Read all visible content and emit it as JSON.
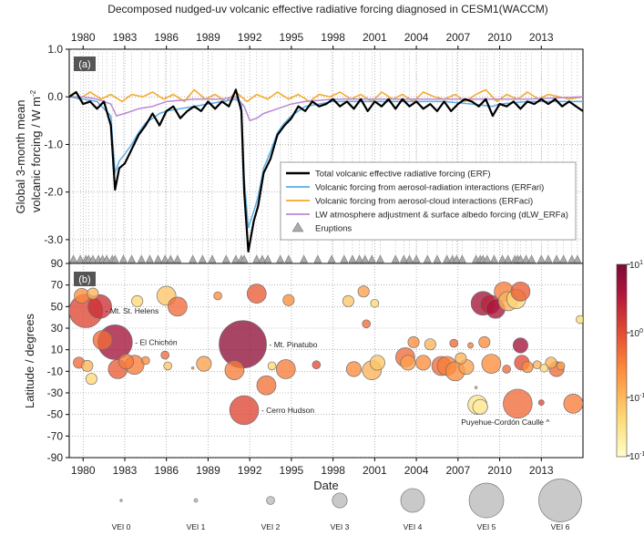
{
  "chart_data": [
    {
      "type": "line",
      "panel_label": "(a)",
      "title": "Decomposed nudged-uv volcanic effective radiative forcing diagnosed in CESM1(WACCM)",
      "ylabel_lines": [
        "Global 3-month mean",
        "volcanic forcing / W m"
      ],
      "ylabel_superscript": "-2",
      "x_ticks": [
        "1980",
        "1983",
        "1986",
        "1989",
        "1992",
        "1995",
        "1998",
        "2001",
        "2004",
        "2007",
        "2010",
        "2013"
      ],
      "y_ticks": [
        "1.0",
        "0.0",
        "-1.0",
        "-2.0",
        "-3.0"
      ],
      "xlim": [
        1979.0,
        2016.0
      ],
      "ylim": [
        -3.5,
        1.0
      ],
      "grid": "dotted",
      "legend_position": "lower-right",
      "series": [
        {
          "name": "Total volcanic effective radiative forcing (ERF)",
          "color": "#000000",
          "x": [
            1979.0,
            1979.5,
            1980.0,
            1980.5,
            1981.0,
            1981.5,
            1982.0,
            1982.3,
            1982.6,
            1983.0,
            1983.5,
            1984.0,
            1984.5,
            1985.0,
            1985.5,
            1986.0,
            1986.5,
            1987.0,
            1987.5,
            1988.0,
            1988.5,
            1989.0,
            1989.5,
            1990.0,
            1990.5,
            1991.0,
            1991.4,
            1991.6,
            1991.9,
            1992.3,
            1992.6,
            1993.0,
            1993.5,
            1994.0,
            1994.5,
            1995.0,
            1995.5,
            1996.0,
            1996.5,
            1997.0,
            1997.5,
            1998.0,
            1998.5,
            1999.0,
            1999.5,
            2000.0,
            2000.5,
            2001.0,
            2001.5,
            2002.0,
            2002.5,
            2003.0,
            2003.5,
            2004.0,
            2004.5,
            2005.0,
            2005.5,
            2006.0,
            2006.5,
            2007.0,
            2007.5,
            2008.0,
            2008.5,
            2009.0,
            2009.5,
            2010.0,
            2010.5,
            2011.0,
            2011.5,
            2012.0,
            2012.5,
            2013.0,
            2013.5,
            2014.0,
            2014.5,
            2015.0,
            2015.5,
            2016.0
          ],
          "values": [
            0.0,
            0.1,
            -0.15,
            -0.1,
            -0.25,
            -0.1,
            -0.6,
            -1.95,
            -1.5,
            -1.4,
            -1.1,
            -0.8,
            -0.6,
            -0.35,
            -0.6,
            -0.3,
            -0.2,
            -0.45,
            -0.3,
            -0.2,
            -0.3,
            -0.1,
            -0.25,
            -0.1,
            -0.2,
            0.15,
            -0.3,
            -2.0,
            -3.25,
            -2.6,
            -2.3,
            -1.6,
            -1.3,
            -0.8,
            -0.6,
            -0.45,
            -0.2,
            -0.3,
            -0.1,
            -0.2,
            -0.15,
            -0.05,
            -0.2,
            -0.1,
            -0.25,
            -0.05,
            -0.3,
            -0.1,
            -0.2,
            -0.05,
            -0.25,
            -0.05,
            -0.2,
            -0.1,
            -0.25,
            -0.15,
            -0.3,
            -0.1,
            -0.3,
            -0.15,
            -0.05,
            -0.1,
            -0.2,
            -0.05,
            -0.4,
            -0.15,
            -0.2,
            -0.1,
            -0.25,
            -0.1,
            -0.15,
            -0.05,
            -0.15,
            -0.05,
            -0.2,
            -0.1,
            -0.2,
            -0.3
          ]
        },
        {
          "name": "Volcanic forcing from aerosol-radiation interactions (ERFari)",
          "color": "#5aaee6",
          "x": [
            1979.0,
            1980.0,
            1981.0,
            1982.0,
            1982.3,
            1982.6,
            1983.0,
            1983.5,
            1984.0,
            1984.5,
            1985.0,
            1985.5,
            1986.0,
            1987.0,
            1988.0,
            1989.0,
            1990.0,
            1991.0,
            1991.4,
            1991.6,
            1991.9,
            1992.3,
            1992.6,
            1993.0,
            1993.5,
            1994.0,
            1994.5,
            1995.0,
            1995.5,
            1996.0,
            1997.0,
            1998.0,
            2000.0,
            2002.0,
            2004.0,
            2006.0,
            2008.0,
            2009.5,
            2010.0,
            2012.0,
            2014.0,
            2016.0
          ],
          "values": [
            0.0,
            -0.05,
            -0.1,
            -0.4,
            -1.6,
            -1.35,
            -1.2,
            -1.0,
            -0.75,
            -0.55,
            -0.45,
            -0.35,
            -0.3,
            -0.25,
            -0.2,
            -0.15,
            -0.1,
            -0.05,
            -0.15,
            -1.7,
            -2.75,
            -2.4,
            -2.1,
            -1.5,
            -1.15,
            -0.75,
            -0.55,
            -0.4,
            -0.3,
            -0.2,
            -0.15,
            -0.1,
            -0.1,
            -0.1,
            -0.1,
            -0.1,
            -0.15,
            -0.2,
            -0.15,
            -0.1,
            -0.1,
            -0.1
          ]
        },
        {
          "name": "Volcanic forcing from aerosol-cloud interactions (ERFaci)",
          "color": "#f5a623",
          "x": [
            1979.0,
            1979.7,
            1980.5,
            1981.3,
            1982.0,
            1982.8,
            1983.5,
            1984.3,
            1985.0,
            1985.8,
            1986.5,
            1987.3,
            1988.0,
            1988.8,
            1989.5,
            1990.3,
            1991.0,
            1991.8,
            1992.5,
            1993.3,
            1994.0,
            1994.8,
            1995.5,
            1996.3,
            1997.0,
            1997.8,
            1998.5,
            1999.3,
            2000.0,
            2000.8,
            2001.5,
            2002.3,
            2003.0,
            2003.8,
            2004.5,
            2005.3,
            2006.0,
            2006.8,
            2007.5,
            2008.3,
            2009.0,
            2009.8,
            2010.5,
            2011.3,
            2012.0,
            2012.8,
            2013.5,
            2014.3,
            2015.0,
            2016.0
          ],
          "values": [
            0.05,
            -0.05,
            0.1,
            -0.05,
            0.05,
            -0.1,
            0.05,
            0.0,
            0.1,
            -0.05,
            0.05,
            -0.1,
            0.15,
            -0.05,
            0.05,
            -0.1,
            0.1,
            -0.1,
            0.05,
            -0.05,
            0.1,
            -0.05,
            0.05,
            -0.1,
            0.05,
            0.0,
            0.1,
            -0.05,
            0.05,
            -0.1,
            0.1,
            -0.05,
            0.05,
            -0.1,
            0.1,
            0.0,
            -0.05,
            0.05,
            -0.1,
            0.05,
            0.15,
            -0.1,
            0.05,
            -0.05,
            0.1,
            -0.05,
            0.05,
            0.0,
            -0.05,
            0.0
          ]
        },
        {
          "name": "LW atmosphere adjustment & surface albedo forcing (dLW_ERFa)",
          "color": "#b888d8",
          "x": [
            1979.0,
            1980.0,
            1981.0,
            1982.0,
            1982.4,
            1983.0,
            1984.0,
            1985.0,
            1986.0,
            1988.0,
            1990.0,
            1991.0,
            1991.6,
            1992.0,
            1992.5,
            1993.0,
            1994.0,
            1995.0,
            1996.0,
            1998.0,
            2000.0,
            2004.0,
            2008.0,
            2010.0,
            2012.0,
            2016.0
          ],
          "values": [
            0.0,
            0.0,
            -0.05,
            -0.15,
            -0.4,
            -0.35,
            -0.25,
            -0.2,
            -0.1,
            -0.05,
            -0.05,
            0.0,
            -0.2,
            -0.5,
            -0.45,
            -0.35,
            -0.25,
            -0.15,
            -0.1,
            -0.05,
            -0.05,
            -0.05,
            -0.05,
            -0.05,
            -0.05,
            0.0
          ]
        }
      ],
      "eruptions_label": "Eruptions",
      "eruption_years": [
        1979.3,
        1979.8,
        1980.2,
        1980.4,
        1980.7,
        1981.1,
        1981.4,
        1981.7,
        1982.1,
        1982.3,
        1982.9,
        1983.5,
        1984.2,
        1984.8,
        1985.4,
        1985.9,
        1986.3,
        1986.8,
        1987.9,
        1988.6,
        1989.3,
        1990.3,
        1991.0,
        1991.4,
        1991.6,
        1992.5,
        1992.9,
        1993.3,
        1994.2,
        1994.8,
        1995.9,
        1996.9,
        1997.9,
        1998.8,
        1999.4,
        1999.9,
        2000.3,
        2000.8,
        2001.4,
        2002.5,
        2003.1,
        2003.5,
        2004.0,
        2004.8,
        2005.5,
        2006.2,
        2006.6,
        2006.9,
        2007.3,
        2008.3,
        2008.6,
        2008.8,
        2009.1,
        2009.6,
        2010.2,
        2010.6,
        2011.1,
        2011.3,
        2011.5,
        2011.9,
        2012.3,
        2013.0,
        2013.5,
        2014.1,
        2014.6,
        2015.2,
        2015.6
      ]
    },
    {
      "type": "scatter",
      "panel_label": "(b)",
      "ylabel": "Latitude / degrees",
      "xlabel": "Date",
      "x_ticks": [
        "1980",
        "1983",
        "1986",
        "1989",
        "1992",
        "1995",
        "1998",
        "2001",
        "2004",
        "2007",
        "2010",
        "2013"
      ],
      "y_ticks": [
        "90",
        "70",
        "50",
        "30",
        "10",
        "-10",
        "-30",
        "-50",
        "-70",
        "-90"
      ],
      "xlim": [
        1979.0,
        2016.0
      ],
      "ylim": [
        -90,
        90
      ],
      "grid": "dotted",
      "points": [
        {
          "x": 1980.2,
          "y": 46,
          "vei": 4.9,
          "intensity": 0.62,
          "label": "Mt. St. Helens"
        },
        {
          "x": 1981.2,
          "y": 50,
          "vei": 4.0,
          "intensity": 0.7
        },
        {
          "x": 1979.9,
          "y": 60,
          "vei": 3.0,
          "intensity": 0.4
        },
        {
          "x": 1980.7,
          "y": 62,
          "vei": 2.5,
          "intensity": 0.3
        },
        {
          "x": 1982.3,
          "y": 17,
          "vei": 5.0,
          "intensity": 0.85,
          "label": "El Chichón"
        },
        {
          "x": 1981.4,
          "y": 19,
          "vei": 3.5,
          "intensity": 0.5
        },
        {
          "x": 1979.7,
          "y": -2,
          "vei": 2.5,
          "intensity": 0.5
        },
        {
          "x": 1980.3,
          "y": -5,
          "vei": 2.5,
          "intensity": 0.3
        },
        {
          "x": 1980.6,
          "y": -17,
          "vei": 2.5,
          "intensity": 0.2
        },
        {
          "x": 1982.5,
          "y": -8,
          "vei": 3.5,
          "intensity": 0.55
        },
        {
          "x": 1983.1,
          "y": -1,
          "vei": 3.0,
          "intensity": 0.45
        },
        {
          "x": 1983.7,
          "y": -4,
          "vei": 3.5,
          "intensity": 0.45
        },
        {
          "x": 1983.9,
          "y": 55,
          "vei": 2.5,
          "intensity": 0.2
        },
        {
          "x": 1984.5,
          "y": 0,
          "vei": 2.0,
          "intensity": 0.4
        },
        {
          "x": 1986.0,
          "y": 60,
          "vei": 3.5,
          "intensity": 0.25
        },
        {
          "x": 1986.8,
          "y": 50,
          "vei": 3.5,
          "intensity": 0.5
        },
        {
          "x": 1985.9,
          "y": 5,
          "vei": 2.0,
          "intensity": 0.5
        },
        {
          "x": 1986.1,
          "y": -5,
          "vei": 2.0,
          "intensity": 0.25
        },
        {
          "x": 1987.9,
          "y": -7,
          "vei": 0.5,
          "intensity": 0.3
        },
        {
          "x": 1988.7,
          "y": -3,
          "vei": 3.0,
          "intensity": 0.35
        },
        {
          "x": 1989.7,
          "y": 60,
          "vei": 2.0,
          "intensity": 0.4
        },
        {
          "x": 1990.9,
          "y": -9,
          "vei": 3.5,
          "intensity": 0.45
        },
        {
          "x": 1991.5,
          "y": 15,
          "vei": 6.0,
          "intensity": 0.92,
          "label": "Mt. Pinatubo"
        },
        {
          "x": 1991.6,
          "y": -46,
          "vei": 4.5,
          "intensity": 0.62,
          "label": "Cerro Hudson"
        },
        {
          "x": 1992.5,
          "y": 62,
          "vei": 3.5,
          "intensity": 0.55
        },
        {
          "x": 1993.2,
          "y": -23,
          "vei": 3.5,
          "intensity": 0.48
        },
        {
          "x": 1993.6,
          "y": -5,
          "vei": 2.0,
          "intensity": 0.2
        },
        {
          "x": 1994.6,
          "y": -8,
          "vei": 3.5,
          "intensity": 0.45
        },
        {
          "x": 1994.8,
          "y": 56,
          "vei": 2.5,
          "intensity": 0.4
        },
        {
          "x": 1996.8,
          "y": -4,
          "vei": 2.0,
          "intensity": 0.6
        },
        {
          "x": 1999.1,
          "y": 55,
          "vei": 2.5,
          "intensity": 0.25
        },
        {
          "x": 1999.5,
          "y": -8,
          "vei": 3.0,
          "intensity": 0.4
        },
        {
          "x": 2000.2,
          "y": 64,
          "vei": 2.5,
          "intensity": 0.35
        },
        {
          "x": 2000.4,
          "y": 34,
          "vei": 2.0,
          "intensity": 0.5
        },
        {
          "x": 2000.8,
          "y": -9,
          "vei": 3.5,
          "intensity": 0.3
        },
        {
          "x": 2001.2,
          "y": -2,
          "vei": 3.0,
          "intensity": 0.25
        },
        {
          "x": 2001.0,
          "y": 53,
          "vei": 2.0,
          "intensity": 0.2
        },
        {
          "x": 2003.2,
          "y": 3,
          "vei": 3.5,
          "intensity": 0.5
        },
        {
          "x": 2003.4,
          "y": -2,
          "vei": 3.0,
          "intensity": 0.35
        },
        {
          "x": 2003.8,
          "y": 17,
          "vei": 2.5,
          "intensity": 0.4
        },
        {
          "x": 2004.5,
          "y": -2,
          "vei": 3.0,
          "intensity": 0.4
        },
        {
          "x": 2005.0,
          "y": 15,
          "vei": 2.5,
          "intensity": 0.3
        },
        {
          "x": 2005.8,
          "y": -5,
          "vei": 3.5,
          "intensity": 0.5
        },
        {
          "x": 2006.2,
          "y": -5,
          "vei": 3.5,
          "intensity": 0.45
        },
        {
          "x": 2006.7,
          "y": 16,
          "vei": 2.0,
          "intensity": 0.5
        },
        {
          "x": 2006.8,
          "y": -10,
          "vei": 3.5,
          "intensity": 0.4
        },
        {
          "x": 2007.2,
          "y": 2,
          "vei": 2.5,
          "intensity": 0.3
        },
        {
          "x": 2007.6,
          "y": -6,
          "vei": 3.0,
          "intensity": 0.35
        },
        {
          "x": 2007.9,
          "y": 14,
          "vei": 1.5,
          "intensity": 0.45
        },
        {
          "x": 2008.4,
          "y": -41,
          "vei": 3.5,
          "intensity": 0.15
        },
        {
          "x": 2008.6,
          "y": -43,
          "vei": 3.0,
          "intensity": 0.1
        },
        {
          "x": 2008.3,
          "y": -25,
          "vei": 0.5,
          "intensity": 0.3
        },
        {
          "x": 2008.9,
          "y": 17,
          "vei": 2.5,
          "intensity": 0.4
        },
        {
          "x": 2008.8,
          "y": 53,
          "vei": 4.0,
          "intensity": 0.85
        },
        {
          "x": 2009.3,
          "y": 52,
          "vei": 3.5,
          "intensity": 0.75
        },
        {
          "x": 2009.7,
          "y": 48,
          "vei": 3.5,
          "intensity": 0.82
        },
        {
          "x": 2009.4,
          "y": -3,
          "vei": 3.5,
          "intensity": 0.4
        },
        {
          "x": 2010.3,
          "y": 64,
          "vei": 3.5,
          "intensity": 0.45
        },
        {
          "x": 2010.6,
          "y": 55,
          "vei": 3.5,
          "intensity": 0.3
        },
        {
          "x": 2010.5,
          "y": -8,
          "vei": 2.0,
          "intensity": 0.5
        },
        {
          "x": 2011.2,
          "y": 57,
          "vei": 3.5,
          "intensity": 0.2
        },
        {
          "x": 2011.5,
          "y": 64,
          "vei": 3.5,
          "intensity": 0.55
        },
        {
          "x": 2011.5,
          "y": 14,
          "vei": 3.0,
          "intensity": 0.85
        },
        {
          "x": 2011.6,
          "y": -2,
          "vei": 3.0,
          "intensity": 0.6
        },
        {
          "x": 2011.3,
          "y": -40,
          "vei": 4.5,
          "intensity": 0.5,
          "label": "Puyehue-Cordón Caulle ^"
        },
        {
          "x": 2012.0,
          "y": -6,
          "vei": 2.5,
          "intensity": 0.4
        },
        {
          "x": 2012.7,
          "y": -4,
          "vei": 2.0,
          "intensity": 0.3
        },
        {
          "x": 2013.2,
          "y": -7,
          "vei": 2.0,
          "intensity": 0.2
        },
        {
          "x": 2013.7,
          "y": -2,
          "vei": 2.5,
          "intensity": 0.3
        },
        {
          "x": 2014.1,
          "y": -8,
          "vei": 3.0,
          "intensity": 0.5
        },
        {
          "x": 2014.4,
          "y": -5,
          "vei": 2.0,
          "intensity": 0.35
        },
        {
          "x": 2013.0,
          "y": -39,
          "vei": 1.5,
          "intensity": 0.6
        },
        {
          "x": 2015.3,
          "y": -40,
          "vei": 3.5,
          "intensity": 0.45
        },
        {
          "x": 2015.8,
          "y": 38,
          "vei": 2.0,
          "intensity": 0.2
        }
      ],
      "colorbar": {
        "tick_labels": [
          "10",
          "10",
          "10",
          "10"
        ],
        "tick_exponents": [
          "1",
          "0",
          "-1",
          "-1"
        ],
        "colors": [
          "#ffffcc",
          "#fed976",
          "#fd8d3c",
          "#e34a33",
          "#b0163b",
          "#7a0b37"
        ]
      },
      "size_legend": [
        "VEI 0",
        "VEI 1",
        "VEI 2",
        "VEI 3",
        "VEI 4",
        "VEI 5",
        "VEI 6"
      ]
    }
  ]
}
